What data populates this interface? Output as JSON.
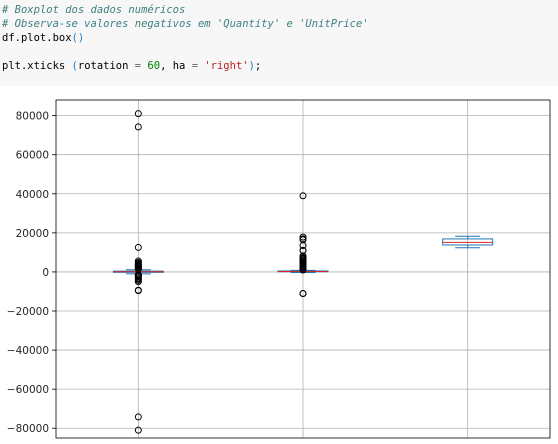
{
  "code": {
    "line1": "# Boxplot dos dados numéricos",
    "line2": "# Observa-se valores negativos em 'Quantity' e 'UnitPrice'",
    "line3_obj": "df.plot.box",
    "line3_parens": "()",
    "line5_func": "plt.xticks ",
    "line5_open": "(",
    "line5_kw1": "rotation ",
    "line5_eq1": "=",
    "line5_num": " 60",
    "line5_mid": ", ha ",
    "line5_eq2": "=",
    "line5_str": " 'right'",
    "line5_close": ")",
    "line5_end": ";"
  },
  "chart_data": {
    "type": "box",
    "ylim": [
      -85000,
      88000
    ],
    "yticks": [
      80000,
      60000,
      40000,
      20000,
      0,
      -20000,
      -40000,
      -60000,
      -80000
    ],
    "ytick_labels": [
      "80000",
      "60000",
      "40000",
      "20000",
      "0",
      "−20000",
      "−40000",
      "−60000",
      "−80000"
    ],
    "grid": true,
    "colors": {
      "box": "#1f77b4",
      "median": "#d62728",
      "whisker": "#1f77b4",
      "grid": "#b0b0b0",
      "frame": "#000000"
    },
    "series": [
      {
        "q1": -200,
        "median": 100,
        "q3": 400,
        "whisker_low": -1000,
        "whisker_high": 1100,
        "fliers": [
          80995,
          74215,
          12540,
          5568,
          4800,
          4300,
          3906,
          3500,
          3114,
          2880,
          2400,
          2000,
          1600,
          1400,
          -1400,
          -1600,
          -2000,
          -2400,
          -3114,
          -3667,
          -4300,
          -5000,
          -9360,
          -9600,
          -74215,
          -80995
        ]
      },
      {
        "q1": 100,
        "median": 200,
        "q3": 500,
        "whisker_low": -300,
        "whisker_high": 800,
        "fliers": [
          38970,
          17836,
          16888,
          16454,
          13541,
          11062,
          10953,
          8142,
          7427,
          6930,
          6500,
          5900,
          5300,
          4800,
          4300,
          3800,
          3300,
          2800,
          2400,
          2000,
          1600,
          1300,
          1000,
          -11062,
          -11063
        ]
      },
      {
        "q1": 13800,
        "median": 15150,
        "q3": 16900,
        "whisker_low": 12346,
        "whisker_high": 18287,
        "fliers": []
      }
    ]
  }
}
